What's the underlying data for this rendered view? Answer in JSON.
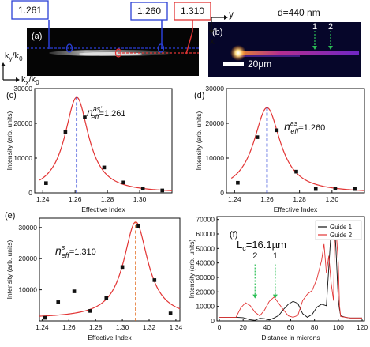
{
  "panel_a": {
    "tag": "(a)",
    "boxes": {
      "left": "1.261",
      "middle": "1.260",
      "right": "1.310"
    },
    "axis_ky": "k",
    "axis_ky_sub": "y",
    "axis_kx": "k",
    "axis_kx_sub": "x",
    "axis_k0": "/k",
    "axis_k0_sub": "0",
    "colors": {
      "blue": "#2a3fd6",
      "red": "#e23434"
    }
  },
  "panel_b": {
    "tag": "(b)",
    "d_label": "d=440 nm",
    "axis_x": "x",
    "axis_y": "y",
    "scale_bar": "20µm",
    "arrow_1": "1",
    "arrow_2": "2"
  },
  "chart_data": [
    {
      "panel": "(c)",
      "type": "scatter",
      "annotation_main": "n",
      "annotation_sup": "as'",
      "annotation_sub": "eff",
      "annotation_value": "=1.261",
      "xlabel": "Effective Index",
      "ylabel": "Intensity (arb. units)",
      "xlim": [
        1.235,
        1.32
      ],
      "ylim": [
        0,
        30000
      ],
      "xticks": [
        1.24,
        1.26,
        1.28,
        1.3
      ],
      "xtick_labels": [
        "1.24",
        "1.26",
        "1.28",
        "1.30"
      ],
      "yticks": [
        0,
        10000,
        20000,
        30000
      ],
      "ytick_labels": [
        "0",
        "10000",
        "20000",
        "30000"
      ],
      "points": [
        [
          1.242,
          2800
        ],
        [
          1.254,
          17500
        ],
        [
          1.266,
          21700
        ],
        [
          1.278,
          7300
        ],
        [
          1.29,
          3000
        ],
        [
          1.302,
          1200
        ],
        [
          1.314,
          700
        ]
      ],
      "fit": {
        "center": 1.261,
        "peak": 27500,
        "hwhm": 0.009,
        "baseline": 0
      },
      "marker_x": 1.261,
      "colors": {
        "fit": "#e23434",
        "marker": "#2a3fd6",
        "points": "#111111"
      }
    },
    {
      "panel": "(d)",
      "type": "scatter",
      "annotation_main": "n",
      "annotation_sup": "as",
      "annotation_sub": "eff",
      "annotation_value": "=1.260",
      "xlabel": "Effective Index",
      "ylabel": "Intensity (arb. units)",
      "xlim": [
        1.235,
        1.32
      ],
      "ylim": [
        0,
        30000
      ],
      "xticks": [
        1.24,
        1.26,
        1.28,
        1.3
      ],
      "xtick_labels": [
        "1.24",
        "1.26",
        "1.28",
        "1.30"
      ],
      "yticks": [
        0,
        10000,
        20000,
        30000
      ],
      "ytick_labels": [
        "0",
        "10000",
        "20000",
        "30000"
      ],
      "points": [
        [
          1.242,
          2900
        ],
        [
          1.254,
          16000
        ],
        [
          1.266,
          18000
        ],
        [
          1.278,
          6100
        ],
        [
          1.29,
          1100
        ],
        [
          1.302,
          1200
        ],
        [
          1.314,
          1100
        ]
      ],
      "fit": {
        "center": 1.26,
        "peak": 24500,
        "hwhm": 0.01,
        "baseline": 0
      },
      "marker_x": 1.26,
      "colors": {
        "fit": "#e23434",
        "marker": "#2a3fd6",
        "points": "#111111"
      }
    },
    {
      "panel": "(e)",
      "type": "scatter",
      "annotation_main": "n",
      "annotation_sup": "s",
      "annotation_sub": "eff",
      "annotation_value": "=1.310",
      "xlabel": "Effective Index",
      "ylabel": "Intensity (arb. units)",
      "xlim": [
        1.238,
        1.343
      ],
      "ylim": [
        0,
        33000
      ],
      "xticks": [
        1.24,
        1.26,
        1.28,
        1.3,
        1.32,
        1.34
      ],
      "xtick_labels": [
        "1.24",
        "1.26",
        "1.28",
        "1.30",
        "1.32",
        "1.34"
      ],
      "yticks": [
        10000,
        20000,
        30000
      ],
      "ytick_labels": [
        "10000",
        "20000",
        "30000"
      ],
      "points": [
        [
          1.242,
          1000
        ],
        [
          1.252,
          6000
        ],
        [
          1.264,
          9500
        ],
        [
          1.276,
          3200
        ],
        [
          1.288,
          7400
        ],
        [
          1.3,
          17300
        ],
        [
          1.312,
          30500
        ],
        [
          1.324,
          13100
        ],
        [
          1.336,
          2400
        ]
      ],
      "fit": {
        "center": 1.31,
        "peak": 31000,
        "hwhm": 0.011,
        "baseline": 800
      },
      "marker_x": 1.31,
      "colors": {
        "fit": "#e23434",
        "marker": "#e36a1c",
        "points": "#111111"
      }
    },
    {
      "panel": "(f)",
      "type": "line",
      "xlabel": "Distance in microns",
      "ylabel": "Intensity (arb. units)",
      "xlim": [
        -2,
        122
      ],
      "ylim": [
        0,
        72000
      ],
      "xticks": [
        0,
        20,
        40,
        60,
        80,
        100,
        120
      ],
      "xtick_labels": [
        "0",
        "20",
        "40",
        "60",
        "80",
        "100",
        "120"
      ],
      "yticks": [
        0,
        10000,
        20000,
        30000,
        40000,
        50000,
        60000,
        70000
      ],
      "ytick_labels": [
        "0",
        "10000",
        "20000",
        "30000",
        "40000",
        "50000",
        "60000",
        "70000"
      ],
      "lc_main": "L",
      "lc_sub": "c",
      "lc_value": "=16.1µm",
      "arrow_labels": [
        "2",
        "1"
      ],
      "arrow_x": [
        30,
        47
      ],
      "legend_position": "top-right",
      "series": [
        {
          "name": "Guide 1",
          "color": "#111111",
          "x": [
            0,
            14,
            20,
            26,
            30,
            34,
            38,
            42,
            46,
            50,
            54,
            58,
            62,
            66,
            70,
            74,
            78,
            82,
            86,
            90,
            94,
            96,
            97,
            98,
            100,
            101,
            102,
            106,
            110,
            114,
            120
          ],
          "y": [
            2500,
            2500,
            2200,
            800,
            400,
            1800,
            1500,
            700,
            2000,
            3800,
            8000,
            11500,
            13500,
            12000,
            5000,
            2500,
            4500,
            9500,
            11500,
            10500,
            63000,
            65000,
            64000,
            50000,
            14500,
            8000,
            3500,
            2500,
            2000,
            2000,
            2000
          ]
        },
        {
          "name": "Guide 2",
          "color": "#e23434",
          "x": [
            0,
            14,
            18,
            22,
            26,
            30,
            34,
            38,
            42,
            46,
            50,
            54,
            58,
            62,
            66,
            70,
            74,
            78,
            82,
            86,
            88,
            90,
            92,
            94,
            96,
            97,
            98,
            99,
            100,
            101,
            102,
            106,
            110,
            114,
            120
          ],
          "y": [
            2500,
            2500,
            9000,
            12500,
            10500,
            6000,
            3500,
            7500,
            13500,
            16500,
            12000,
            7500,
            3500,
            2500,
            3800,
            14000,
            18500,
            21000,
            29000,
            42000,
            53000,
            33000,
            45000,
            26000,
            14000,
            62000,
            65000,
            52000,
            40000,
            10500,
            3000,
            2500,
            2000,
            2000,
            2000
          ]
        }
      ]
    }
  ]
}
